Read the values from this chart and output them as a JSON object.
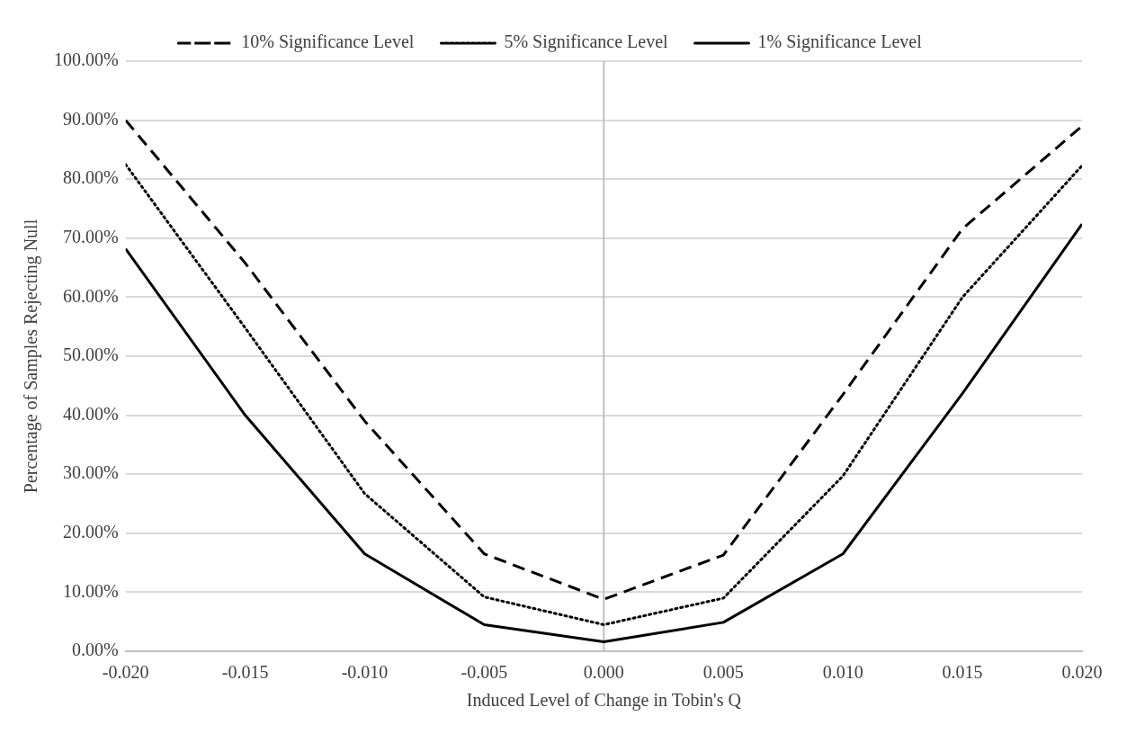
{
  "chart_data": {
    "type": "line",
    "xlabel": "Induced Level of Change in Tobin's Q",
    "ylabel": "Percentage of Samples Rejecting Null",
    "x": [
      -0.02,
      -0.015,
      -0.01,
      -0.005,
      0,
      0.005,
      0.01,
      0.015,
      0.02
    ],
    "series": [
      {
        "name": "10% Significance Level",
        "color": "#000000",
        "line_style": "dashed",
        "values": [
          90,
          65.8,
          39,
          16.5,
          8.8,
          16.3,
          43.5,
          71.6,
          89
        ]
      },
      {
        "name": "5% Significance Level",
        "color": "#000000",
        "line_style": "dotted",
        "values": [
          82.5,
          54.8,
          26.7,
          9.2,
          4.5,
          9,
          29.7,
          60,
          82.3
        ]
      },
      {
        "name": "1% Significance Level",
        "color": "#000000",
        "line_style": "solid",
        "values": [
          68.2,
          40,
          16.5,
          4.5,
          1.6,
          4.9,
          16.5,
          43.7,
          72.4
        ]
      }
    ],
    "xlim": [
      -0.02,
      0.02
    ],
    "ylim": [
      0,
      100
    ],
    "xticks": [
      {
        "value": -0.02,
        "label": "-0.020"
      },
      {
        "value": -0.015,
        "label": "-0.015"
      },
      {
        "value": -0.01,
        "label": "-0.010"
      },
      {
        "value": -0.005,
        "label": "-0.005"
      },
      {
        "value": 0,
        "label": "0.000"
      },
      {
        "value": 0.005,
        "label": "0.005"
      },
      {
        "value": 0.01,
        "label": "0.010"
      },
      {
        "value": 0.015,
        "label": "0.015"
      },
      {
        "value": 0.02,
        "label": "0.020"
      }
    ],
    "yticks": [
      {
        "value": 0,
        "label": "0.00%"
      },
      {
        "value": 10,
        "label": "10.00%"
      },
      {
        "value": 20,
        "label": "20.00%"
      },
      {
        "value": 30,
        "label": "30.00%"
      },
      {
        "value": 40,
        "label": "40.00%"
      },
      {
        "value": 50,
        "label": "50.00%"
      },
      {
        "value": 60,
        "label": "60.00%"
      },
      {
        "value": 70,
        "label": "70.00%"
      },
      {
        "value": 80,
        "label": "80.00%"
      },
      {
        "value": 90,
        "label": "90.00%"
      },
      {
        "value": 100,
        "label": "100.00%"
      }
    ],
    "grid": "y",
    "legend": "top",
    "marker": "none"
  }
}
